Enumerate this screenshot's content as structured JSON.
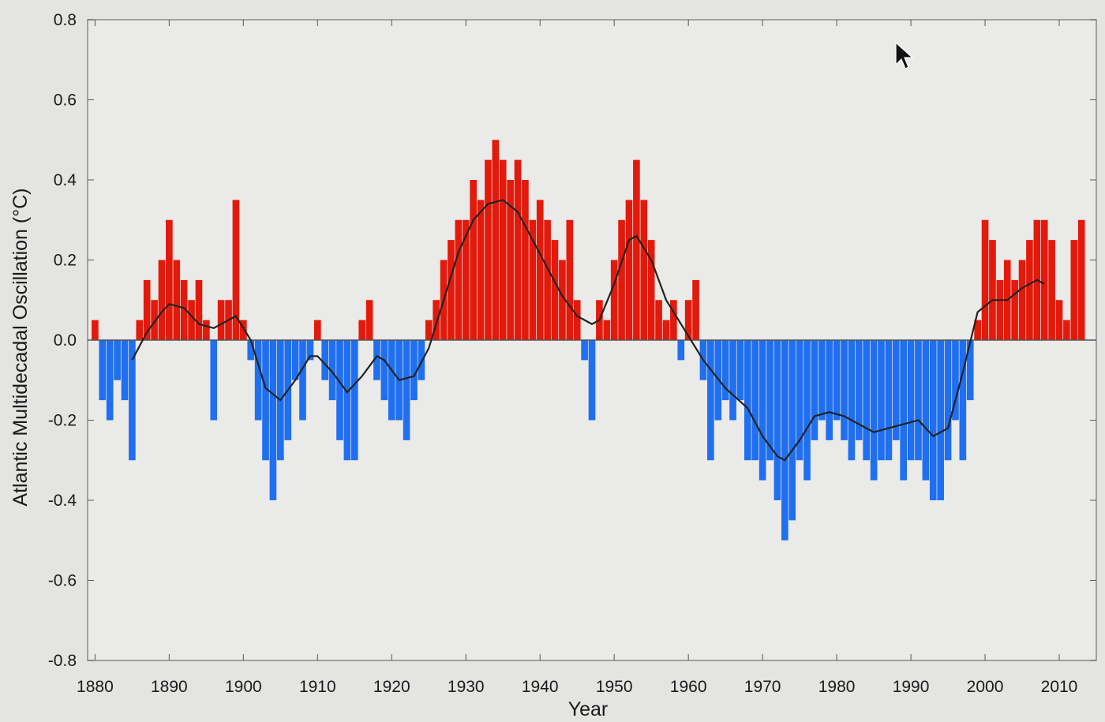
{
  "chart_data": {
    "type": "area",
    "title": "",
    "xlabel": "Year",
    "ylabel": "Atlantic Multidecadal Oscillation (°C)",
    "xlim": [
      1879,
      2015
    ],
    "ylim": [
      -0.8,
      0.8
    ],
    "grid": false,
    "x_ticks": [
      "1880",
      "1890",
      "1900",
      "1910",
      "1920",
      "1930",
      "1940",
      "1950",
      "1960",
      "1970",
      "1980",
      "1990",
      "2000",
      "2010"
    ],
    "y_ticks": [
      "0.8",
      "0.6",
      "0.4",
      "0.2",
      "0.0",
      "-0.2",
      "-0.4",
      "-0.6",
      "-0.8"
    ],
    "colors": {
      "positive": "#e21a0c",
      "negative": "#1f6ff0",
      "smooth": "#222222",
      "background": "#eaeae8"
    },
    "series": [
      {
        "kind": "monthly anomaly (approx. annual envelope)",
        "x": [
          1880,
          1881,
          1882,
          1883,
          1884,
          1885,
          1886,
          1887,
          1888,
          1889,
          1890,
          1891,
          1892,
          1893,
          1894,
          1895,
          1896,
          1897,
          1898,
          1899,
          1900,
          1901,
          1902,
          1903,
          1904,
          1905,
          1906,
          1907,
          1908,
          1909,
          1910,
          1911,
          1912,
          1913,
          1914,
          1915,
          1916,
          1917,
          1918,
          1919,
          1920,
          1921,
          1922,
          1923,
          1924,
          1925,
          1926,
          1927,
          1928,
          1929,
          1930,
          1931,
          1932,
          1933,
          1934,
          1935,
          1936,
          1937,
          1938,
          1939,
          1940,
          1941,
          1942,
          1943,
          1944,
          1945,
          1946,
          1947,
          1948,
          1949,
          1950,
          1951,
          1952,
          1953,
          1954,
          1955,
          1956,
          1957,
          1958,
          1959,
          1960,
          1961,
          1962,
          1963,
          1964,
          1965,
          1966,
          1967,
          1968,
          1969,
          1970,
          1971,
          1972,
          1973,
          1974,
          1975,
          1976,
          1977,
          1978,
          1979,
          1980,
          1981,
          1982,
          1983,
          1984,
          1985,
          1986,
          1987,
          1988,
          1989,
          1990,
          1991,
          1992,
          1993,
          1994,
          1995,
          1996,
          1997,
          1998,
          1999,
          2000,
          2001,
          2002,
          2003,
          2004,
          2005,
          2006,
          2007,
          2008,
          2009,
          2010,
          2011,
          2012,
          2013
        ],
        "values": [
          0.05,
          -0.15,
          -0.2,
          -0.1,
          -0.15,
          -0.3,
          0.05,
          0.15,
          0.1,
          0.2,
          0.3,
          0.2,
          0.15,
          0.1,
          0.15,
          0.05,
          -0.2,
          0.1,
          0.1,
          0.35,
          0.05,
          -0.05,
          -0.2,
          -0.3,
          -0.4,
          -0.3,
          -0.25,
          -0.1,
          -0.2,
          -0.05,
          0.05,
          -0.1,
          -0.15,
          -0.25,
          -0.3,
          -0.3,
          0.05,
          0.1,
          -0.1,
          -0.15,
          -0.2,
          -0.2,
          -0.25,
          -0.15,
          -0.1,
          0.05,
          0.1,
          0.2,
          0.25,
          0.3,
          0.3,
          0.4,
          0.35,
          0.45,
          0.5,
          0.45,
          0.4,
          0.45,
          0.4,
          0.3,
          0.35,
          0.3,
          0.25,
          0.2,
          0.3,
          0.1,
          -0.05,
          -0.2,
          0.1,
          0.05,
          0.2,
          0.3,
          0.35,
          0.45,
          0.35,
          0.25,
          0.1,
          0.05,
          0.1,
          -0.05,
          0.1,
          0.15,
          -0.1,
          -0.3,
          -0.2,
          -0.15,
          -0.2,
          -0.15,
          -0.3,
          -0.3,
          -0.35,
          -0.3,
          -0.4,
          -0.5,
          -0.45,
          -0.3,
          -0.35,
          -0.25,
          -0.2,
          -0.25,
          -0.2,
          -0.25,
          -0.3,
          -0.25,
          -0.3,
          -0.35,
          -0.3,
          -0.3,
          -0.25,
          -0.35,
          -0.3,
          -0.3,
          -0.35,
          -0.4,
          -0.4,
          -0.3,
          -0.2,
          -0.3,
          -0.15,
          0.05,
          0.3,
          0.25,
          0.15,
          0.2,
          0.15,
          0.2,
          0.25,
          0.3,
          0.3,
          0.25,
          0.1,
          0.05,
          0.25,
          0.3
        ]
      },
      {
        "kind": "smoothed",
        "x": [
          1885,
          1887,
          1889,
          1890,
          1892,
          1894,
          1896,
          1898,
          1899,
          1901,
          1903,
          1905,
          1907,
          1909,
          1910,
          1912,
          1914,
          1916,
          1918,
          1919,
          1921,
          1923,
          1925,
          1927,
          1929,
          1931,
          1933,
          1935,
          1937,
          1939,
          1941,
          1943,
          1945,
          1947,
          1948,
          1950,
          1952,
          1953,
          1955,
          1957,
          1959,
          1962,
          1965,
          1968,
          1970,
          1972,
          1973,
          1975,
          1977,
          1979,
          1981,
          1983,
          1985,
          1987,
          1989,
          1991,
          1993,
          1995,
          1997,
          1999,
          2001,
          2003,
          2005,
          2007,
          2008
        ],
        "values": [
          -0.05,
          0.02,
          0.07,
          0.09,
          0.08,
          0.04,
          0.03,
          0.05,
          0.06,
          0.0,
          -0.12,
          -0.15,
          -0.1,
          -0.04,
          -0.04,
          -0.08,
          -0.13,
          -0.09,
          -0.04,
          -0.05,
          -0.1,
          -0.09,
          -0.02,
          0.1,
          0.22,
          0.3,
          0.34,
          0.35,
          0.32,
          0.25,
          0.18,
          0.11,
          0.06,
          0.04,
          0.05,
          0.14,
          0.25,
          0.26,
          0.2,
          0.1,
          0.04,
          -0.05,
          -0.12,
          -0.17,
          -0.24,
          -0.29,
          -0.3,
          -0.25,
          -0.19,
          -0.18,
          -0.19,
          -0.21,
          -0.23,
          -0.22,
          -0.21,
          -0.2,
          -0.24,
          -0.22,
          -0.08,
          0.07,
          0.1,
          0.1,
          0.13,
          0.15,
          0.14
        ]
      }
    ]
  }
}
